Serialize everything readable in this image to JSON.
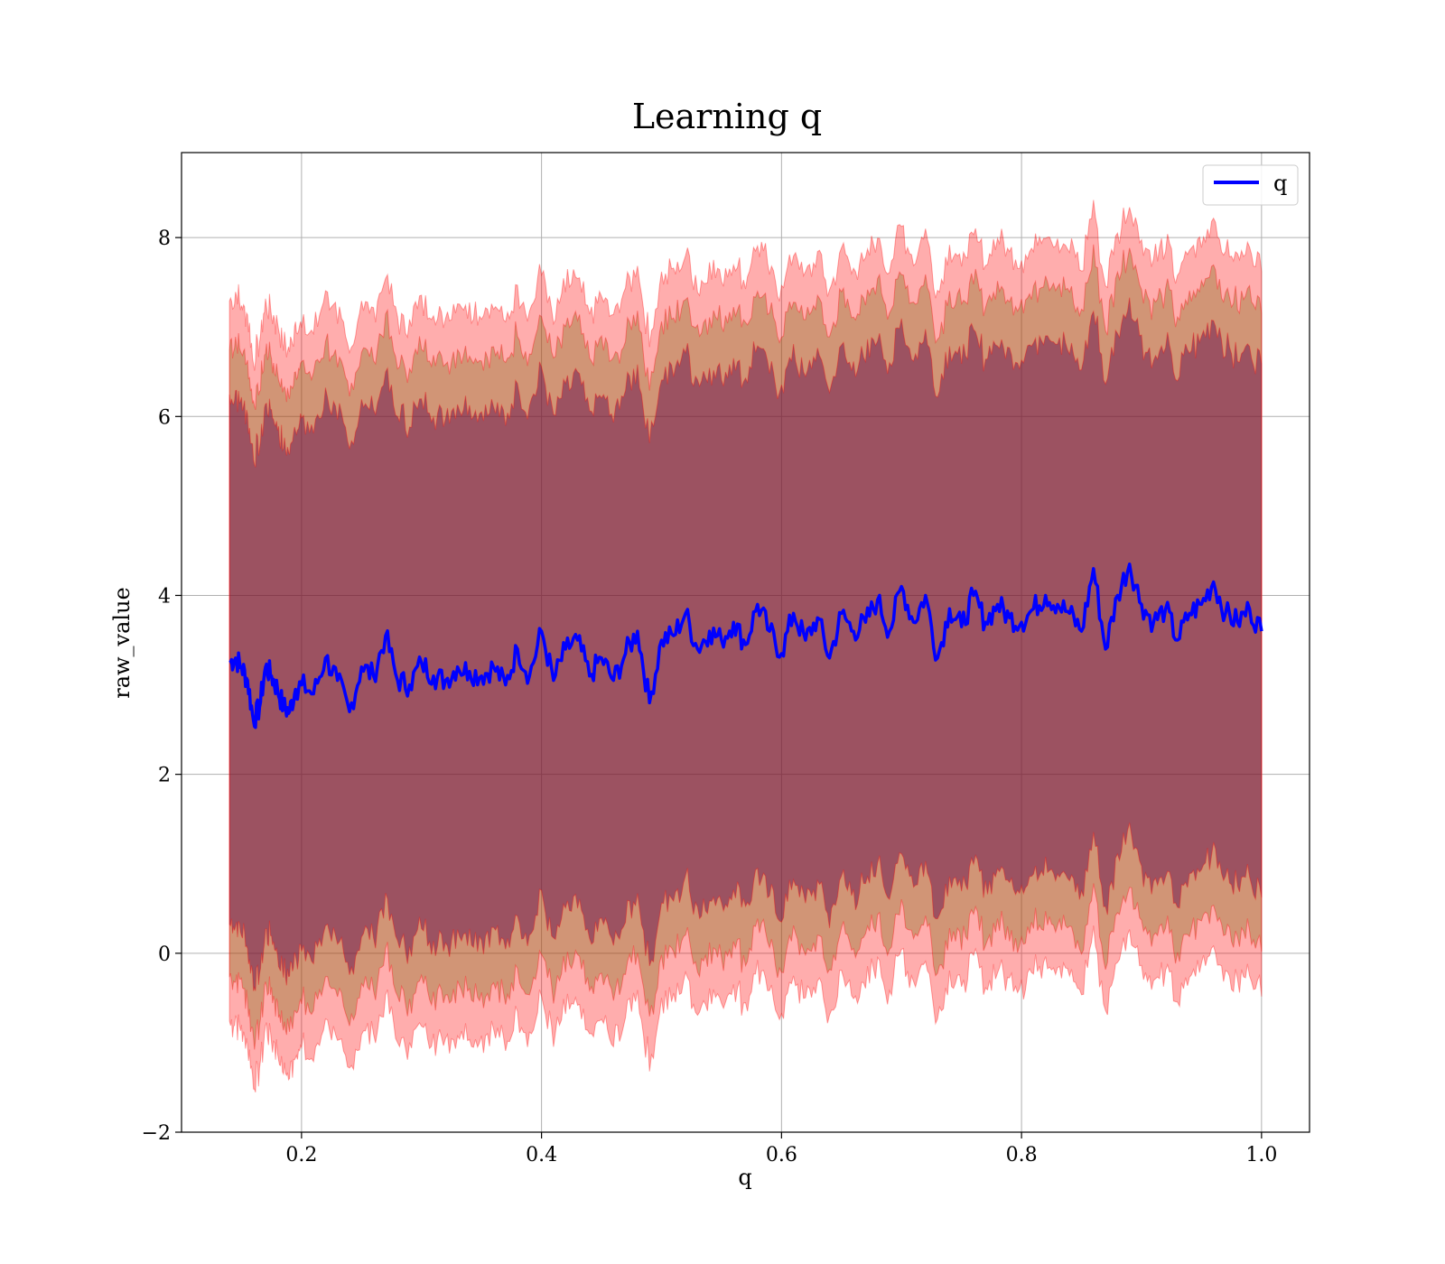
{
  "chart_data": {
    "type": "line",
    "title": "Learning q",
    "xlabel": "q",
    "ylabel": "raw_value",
    "xlim": [
      0.1,
      1.04
    ],
    "ylim": [
      -2.0,
      8.95
    ],
    "xticks": [
      0.2,
      0.4,
      0.6,
      0.8,
      1.0
    ],
    "xtick_labels": [
      "0.2",
      "0.4",
      "0.6",
      "0.8",
      "1.0"
    ],
    "yticks": [
      -2,
      0,
      2,
      4,
      6,
      8
    ],
    "ytick_labels": [
      "−2",
      "0",
      "2",
      "4",
      "6",
      "8"
    ],
    "grid": true,
    "legend_position": "top-right",
    "series": [
      {
        "name": "q",
        "color": "#0000ff",
        "x": [
          0.14,
          0.145,
          0.15,
          0.155,
          0.16,
          0.165,
          0.17,
          0.175,
          0.18,
          0.185,
          0.19,
          0.195,
          0.2,
          0.21,
          0.22,
          0.23,
          0.24,
          0.25,
          0.26,
          0.27,
          0.28,
          0.29,
          0.3,
          0.31,
          0.32,
          0.33,
          0.34,
          0.35,
          0.36,
          0.37,
          0.38,
          0.39,
          0.4,
          0.41,
          0.42,
          0.43,
          0.44,
          0.45,
          0.46,
          0.47,
          0.48,
          0.49,
          0.5,
          0.51,
          0.52,
          0.53,
          0.54,
          0.55,
          0.56,
          0.57,
          0.58,
          0.59,
          0.6,
          0.61,
          0.62,
          0.63,
          0.64,
          0.65,
          0.66,
          0.67,
          0.68,
          0.69,
          0.7,
          0.71,
          0.72,
          0.73,
          0.74,
          0.75,
          0.76,
          0.77,
          0.78,
          0.79,
          0.8,
          0.81,
          0.82,
          0.83,
          0.84,
          0.85,
          0.86,
          0.87,
          0.88,
          0.89,
          0.9,
          0.91,
          0.92,
          0.93,
          0.94,
          0.95,
          0.96,
          0.97,
          0.98,
          0.99,
          1.0
        ],
        "values": [
          3.25,
          3.3,
          3.2,
          3.05,
          2.6,
          2.75,
          3.2,
          3.1,
          2.95,
          2.75,
          2.7,
          2.95,
          3.0,
          2.9,
          3.3,
          3.05,
          2.7,
          3.2,
          3.1,
          3.55,
          3.05,
          3.0,
          3.25,
          3.1,
          3.05,
          3.2,
          3.15,
          3.1,
          3.2,
          3.0,
          3.4,
          3.1,
          3.6,
          3.05,
          3.4,
          3.5,
          3.1,
          3.3,
          3.05,
          3.35,
          3.6,
          2.8,
          3.5,
          3.55,
          3.8,
          3.4,
          3.6,
          3.5,
          3.7,
          3.45,
          3.9,
          3.6,
          3.35,
          3.8,
          3.5,
          3.75,
          3.3,
          3.8,
          3.6,
          3.7,
          3.95,
          3.6,
          4.1,
          3.7,
          4.0,
          3.3,
          3.85,
          3.65,
          4.0,
          3.7,
          3.9,
          3.75,
          3.7,
          3.85,
          4.0,
          3.9,
          3.8,
          3.6,
          4.3,
          3.4,
          4.0,
          4.35,
          3.9,
          3.7,
          3.85,
          3.5,
          3.8,
          3.9,
          4.15,
          3.8,
          3.7,
          3.85,
          3.6
        ]
      }
    ],
    "bands": [
      {
        "label_visible": false,
        "color": "#ff0000",
        "opacity": 0.32,
        "upper_offset": 4.05,
        "lower_offset": -4.05
      },
      {
        "label_visible": false,
        "color": "#7a6b10",
        "opacity": 0.35,
        "upper_offset": 3.55,
        "lower_offset": -3.55
      },
      {
        "label_visible": false,
        "color": "#5a004a",
        "opacity": 0.45,
        "upper_offset": 2.95,
        "lower_offset": -2.95
      }
    ],
    "band_edge_color": "#ff0000"
  }
}
